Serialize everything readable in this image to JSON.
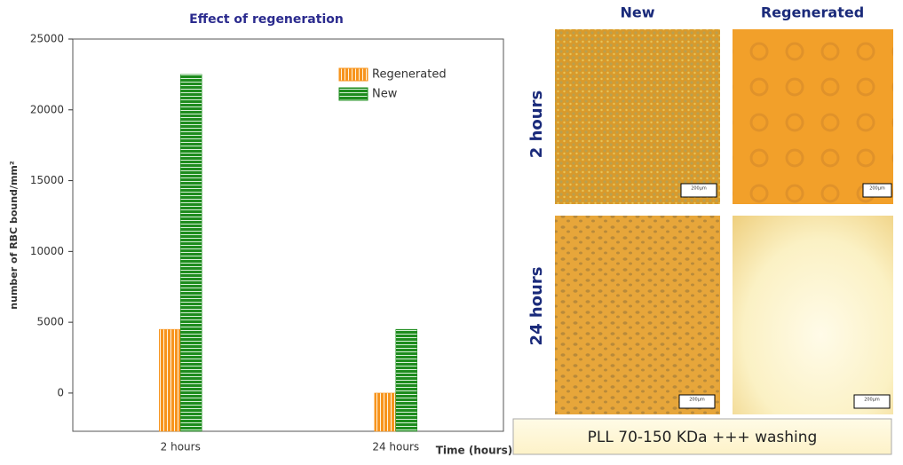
{
  "chart_data": {
    "type": "bar",
    "title": "Effect of regeneration",
    "y_label": "number of RBC bound/mm²",
    "x_label": "Time (hours)",
    "categories": [
      "2 hours",
      "24 hours"
    ],
    "series": [
      {
        "name": "Regenerated",
        "color": "#f7941d",
        "values": [
          4500,
          0
        ]
      },
      {
        "name": "New",
        "color": "#1e8c1e",
        "values": [
          22500,
          4500
        ]
      }
    ],
    "ylim": [
      -2700,
      25000
    ],
    "yticks": [
      0,
      5000,
      10000,
      15000,
      20000,
      25000
    ],
    "legend": "upper right"
  },
  "panel": {
    "columns": [
      "New",
      "Regenerated"
    ],
    "rows": [
      "2 hours",
      "24 hours"
    ],
    "scale_bar": "200µm",
    "caption": "PLL 70-150 KDa +++ washing"
  }
}
